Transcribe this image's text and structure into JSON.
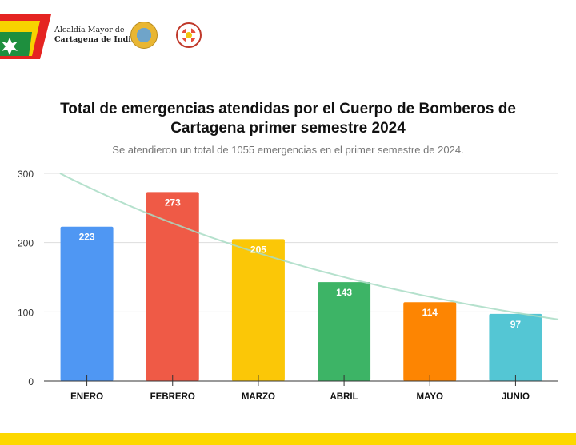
{
  "header": {
    "org_line1": "Alcaldía Mayor de",
    "org_line2": "Cartagena de Indias",
    "logos": [
      "flag-logo",
      "city-seal-logo",
      "fire-department-crest-logo"
    ]
  },
  "colors": {
    "footer_band": "#fdd800",
    "trendline": "#a8dcc4"
  },
  "chart_data": {
    "type": "bar",
    "title": "Total de emergencias atendidas por el Cuerpo de Bomberos de Cartagena primer semestre 2024",
    "title_line1": "Total de emergencias atendidas por el Cuerpo de Bomberos de",
    "title_line2": "Cartagena primer semestre 2024",
    "subtitle": "Se atendieron un total de 1055 emergencias en el primer semestre de 2024.",
    "categories": [
      "ENERO",
      "FEBRERO",
      "MARZO",
      "ABRIL",
      "MAYO",
      "JUNIO"
    ],
    "values": [
      223,
      273,
      205,
      143,
      114,
      97
    ],
    "bar_colors": [
      "#4f97f3",
      "#ef5a46",
      "#fbc707",
      "#3db466",
      "#fd8502",
      "#54c6d4"
    ],
    "data_labels": [
      "223",
      "273",
      "205",
      "143",
      "114",
      "97"
    ],
    "xlabel": "",
    "ylabel": "",
    "ylim": [
      0,
      300
    ],
    "yticks": [
      0,
      100,
      200,
      300
    ],
    "ytick_labels": [
      "0",
      "100",
      "200",
      "300"
    ],
    "grid": true,
    "legend": "none",
    "trendline": {
      "type": "exponential",
      "start_value": 300,
      "end_value": 89
    }
  }
}
